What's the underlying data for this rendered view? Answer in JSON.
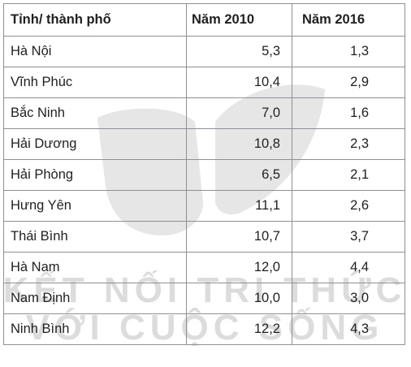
{
  "table": {
    "headers": [
      "Tỉnh/ thành phố",
      "Năm 2010",
      "Năm 2016"
    ],
    "rows": [
      [
        "Hà Nội",
        "5,3",
        "1,3"
      ],
      [
        "Vĩnh Phúc",
        "10,4",
        "2,9"
      ],
      [
        "Bắc Ninh",
        "7,0",
        "1,6"
      ],
      [
        "Hải Dương",
        "10,8",
        "2,3"
      ],
      [
        "Hải Phòng",
        "6,5",
        "2,1"
      ],
      [
        "Hưng Yên",
        "11,1",
        "2,6"
      ],
      [
        "Thái Bình",
        "10,7",
        "3,7"
      ],
      [
        "Hà Nam",
        "12,0",
        "4,4"
      ],
      [
        "Nam Định",
        "10,0",
        "3,0"
      ],
      [
        "Ninh Bình",
        "12,2",
        "4,3"
      ]
    ]
  },
  "watermark": {
    "line1": "KẾT NỐI TRI THỨC",
    "line2": "VỚI CUỘC SỐNG",
    "color": "#d9d9d9"
  }
}
